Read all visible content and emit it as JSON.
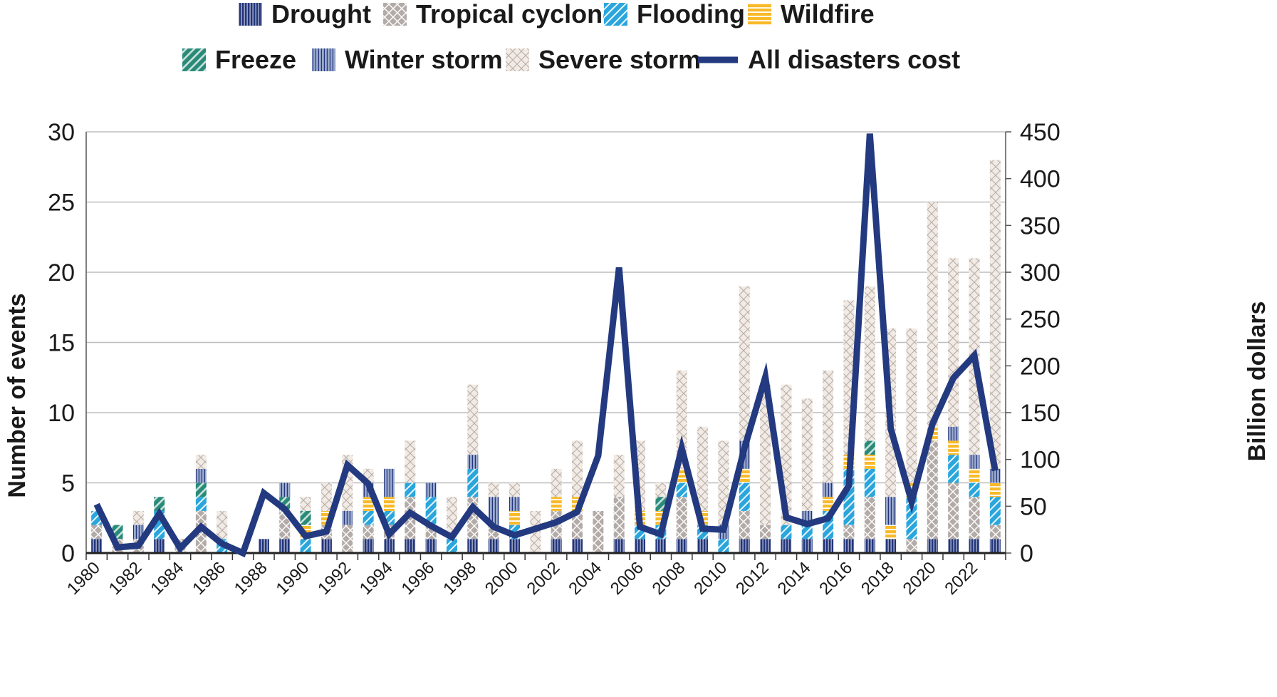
{
  "chart_data": {
    "type": "bar",
    "stacked": true,
    "grid": true,
    "legend_position": "top",
    "title": "",
    "xlabel": "",
    "ylabel": "Number of events",
    "y2label": "Billion dollars",
    "ylim": [
      0,
      30
    ],
    "y2lim": [
      0,
      450
    ],
    "yticks": [
      0,
      5,
      10,
      15,
      20,
      25,
      30
    ],
    "y2ticks": [
      0,
      50,
      100,
      150,
      200,
      250,
      300,
      350,
      400,
      450
    ],
    "categories": [
      "1980",
      "1981",
      "1982",
      "1983",
      "1984",
      "1985",
      "1986",
      "1987",
      "1988",
      "1989",
      "1990",
      "1991",
      "1992",
      "1993",
      "1994",
      "1995",
      "1996",
      "1997",
      "1998",
      "1999",
      "2000",
      "2001",
      "2002",
      "2003",
      "2004",
      "2005",
      "2006",
      "2007",
      "2008",
      "2009",
      "2010",
      "2011",
      "2012",
      "2013",
      "2014",
      "2015",
      "2016",
      "2017",
      "2018",
      "2019",
      "2020",
      "2021",
      "2022",
      "2023"
    ],
    "tick_labels": [
      "1980",
      "1982",
      "1984",
      "1986",
      "1988",
      "1990",
      "1992",
      "1994",
      "1996",
      "1998",
      "2000",
      "2002",
      "2004",
      "2006",
      "2008",
      "2010",
      "2012",
      "2014",
      "2016",
      "2018",
      "2020",
      "2022"
    ],
    "series": [
      {
        "name": "Drought",
        "color": "#22357a",
        "pattern": "vertical-dense",
        "values": [
          1,
          0,
          0,
          1,
          0,
          0,
          0,
          0,
          1,
          1,
          0,
          1,
          0,
          1,
          1,
          1,
          1,
          0,
          1,
          1,
          1,
          0,
          1,
          1,
          0,
          1,
          1,
          1,
          1,
          1,
          0,
          1,
          1,
          1,
          1,
          1,
          1,
          1,
          1,
          0,
          1,
          1,
          1,
          1
        ]
      },
      {
        "name": "Tropical cyclone",
        "color": "#b3aba8",
        "pattern": "cross",
        "values": [
          1,
          1,
          1,
          0,
          1,
          3,
          0,
          0,
          0,
          2,
          0,
          1,
          2,
          1,
          1,
          3,
          1,
          0,
          3,
          1,
          0,
          0,
          2,
          2,
          3,
          3,
          0,
          0,
          3,
          0,
          0,
          2,
          1,
          0,
          0,
          0,
          1,
          3,
          0,
          1,
          7,
          4,
          3,
          1
        ]
      },
      {
        "name": "Flooding",
        "color": "#2ba6dc",
        "pattern": "diagonal",
        "values": [
          1,
          0,
          0,
          2,
          0,
          1,
          1,
          0,
          0,
          0,
          1,
          0,
          0,
          1,
          1,
          1,
          2,
          1,
          2,
          0,
          1,
          0,
          0,
          0,
          0,
          0,
          1,
          1,
          1,
          1,
          1,
          2,
          0,
          1,
          1,
          2,
          4,
          2,
          0,
          3,
          0,
          2,
          1,
          2
        ]
      },
      {
        "name": "Wildfire",
        "color": "#f8ba2a",
        "pattern": "horizontal",
        "values": [
          0,
          0,
          0,
          0,
          0,
          0,
          0,
          0,
          0,
          0,
          1,
          1,
          0,
          1,
          1,
          0,
          0,
          0,
          0,
          0,
          1,
          0,
          1,
          1,
          0,
          0,
          1,
          1,
          1,
          1,
          0,
          1,
          0,
          0,
          0,
          1,
          1,
          1,
          1,
          1,
          1,
          1,
          1,
          1
        ]
      },
      {
        "name": "Freeze",
        "color": "#2a8a78",
        "pattern": "diagonal-thick",
        "values": [
          0,
          1,
          0,
          1,
          0,
          1,
          0,
          0,
          0,
          1,
          1,
          0,
          0,
          0,
          0,
          0,
          0,
          0,
          0,
          0,
          0,
          0,
          0,
          0,
          0,
          0,
          0,
          1,
          0,
          0,
          0,
          0,
          0,
          0,
          0,
          0,
          0,
          1,
          0,
          0,
          0,
          0,
          0,
          0
        ]
      },
      {
        "name": "Winter storm",
        "color": "#9aa9cc",
        "pattern": "vertical",
        "values": [
          0,
          0,
          1,
          0,
          0,
          1,
          0,
          0,
          0,
          1,
          0,
          0,
          1,
          1,
          2,
          0,
          1,
          0,
          1,
          2,
          1,
          0,
          0,
          0,
          0,
          0,
          0,
          0,
          0,
          0,
          1,
          2,
          0,
          0,
          1,
          1,
          0,
          0,
          2,
          0,
          0,
          1,
          1,
          1
        ]
      },
      {
        "name": "Severe storm",
        "color": "#f2ebe5",
        "pattern": "cross-light",
        "values": [
          0,
          0,
          1,
          0,
          0,
          1,
          2,
          0,
          0,
          0,
          1,
          2,
          4,
          1,
          0,
          3,
          0,
          3,
          5,
          1,
          1,
          3,
          2,
          4,
          0,
          3,
          5,
          1,
          7,
          6,
          6,
          11,
          10,
          10,
          8,
          8,
          11,
          11,
          12,
          11,
          16,
          12,
          14,
          22
        ]
      }
    ],
    "line": {
      "name": "All disasters cost",
      "color": "#233a80",
      "axis": "right",
      "values": [
        52,
        6,
        8,
        42,
        5,
        28,
        10,
        0,
        64,
        47,
        18,
        23,
        94,
        74,
        20,
        43,
        29,
        17,
        49,
        28,
        19,
        26,
        33,
        44,
        104,
        305,
        28,
        20,
        112,
        26,
        25,
        112,
        188,
        38,
        31,
        37,
        72,
        448,
        133,
        55,
        138,
        187,
        211,
        88
      ]
    }
  }
}
